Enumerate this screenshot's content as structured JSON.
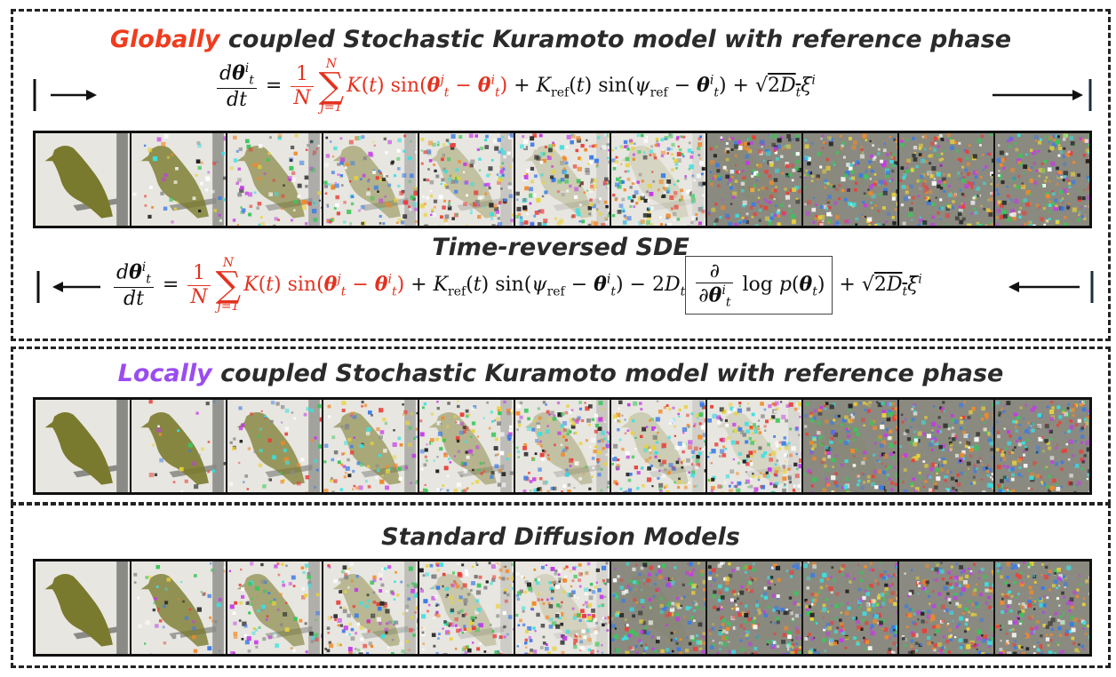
{
  "panels": {
    "global": {
      "title_highlight": "Globally",
      "title_rest": " coupled Stochastic Kuramoto model with reference phase",
      "subtitle": "Time-reversed SDE"
    },
    "local": {
      "title_highlight": "Locally",
      "title_rest": " coupled Stochastic Kuramoto model with reference phase"
    },
    "standard": {
      "title": "Standard Diffusion Models"
    }
  },
  "colors": {
    "highlight_global": "#f03c1e",
    "highlight_local": "#9a4cf0",
    "bird": "#7a7a2e",
    "perch": "#8a8a86",
    "background": "#e8e6e0"
  },
  "strips": {
    "frame_count": 11,
    "global_noise_levels": [
      0,
      0.18,
      0.35,
      0.5,
      0.62,
      0.72,
      0.8,
      0.87,
      0.92,
      0.96,
      1.0
    ],
    "local_noise_levels": [
      0,
      0.1,
      0.25,
      0.4,
      0.52,
      0.63,
      0.72,
      0.8,
      0.87,
      0.93,
      0.98
    ],
    "standard_noise_levels": [
      0,
      0.2,
      0.38,
      0.54,
      0.68,
      0.78,
      0.86,
      0.92,
      0.96,
      0.98,
      1.0
    ]
  }
}
